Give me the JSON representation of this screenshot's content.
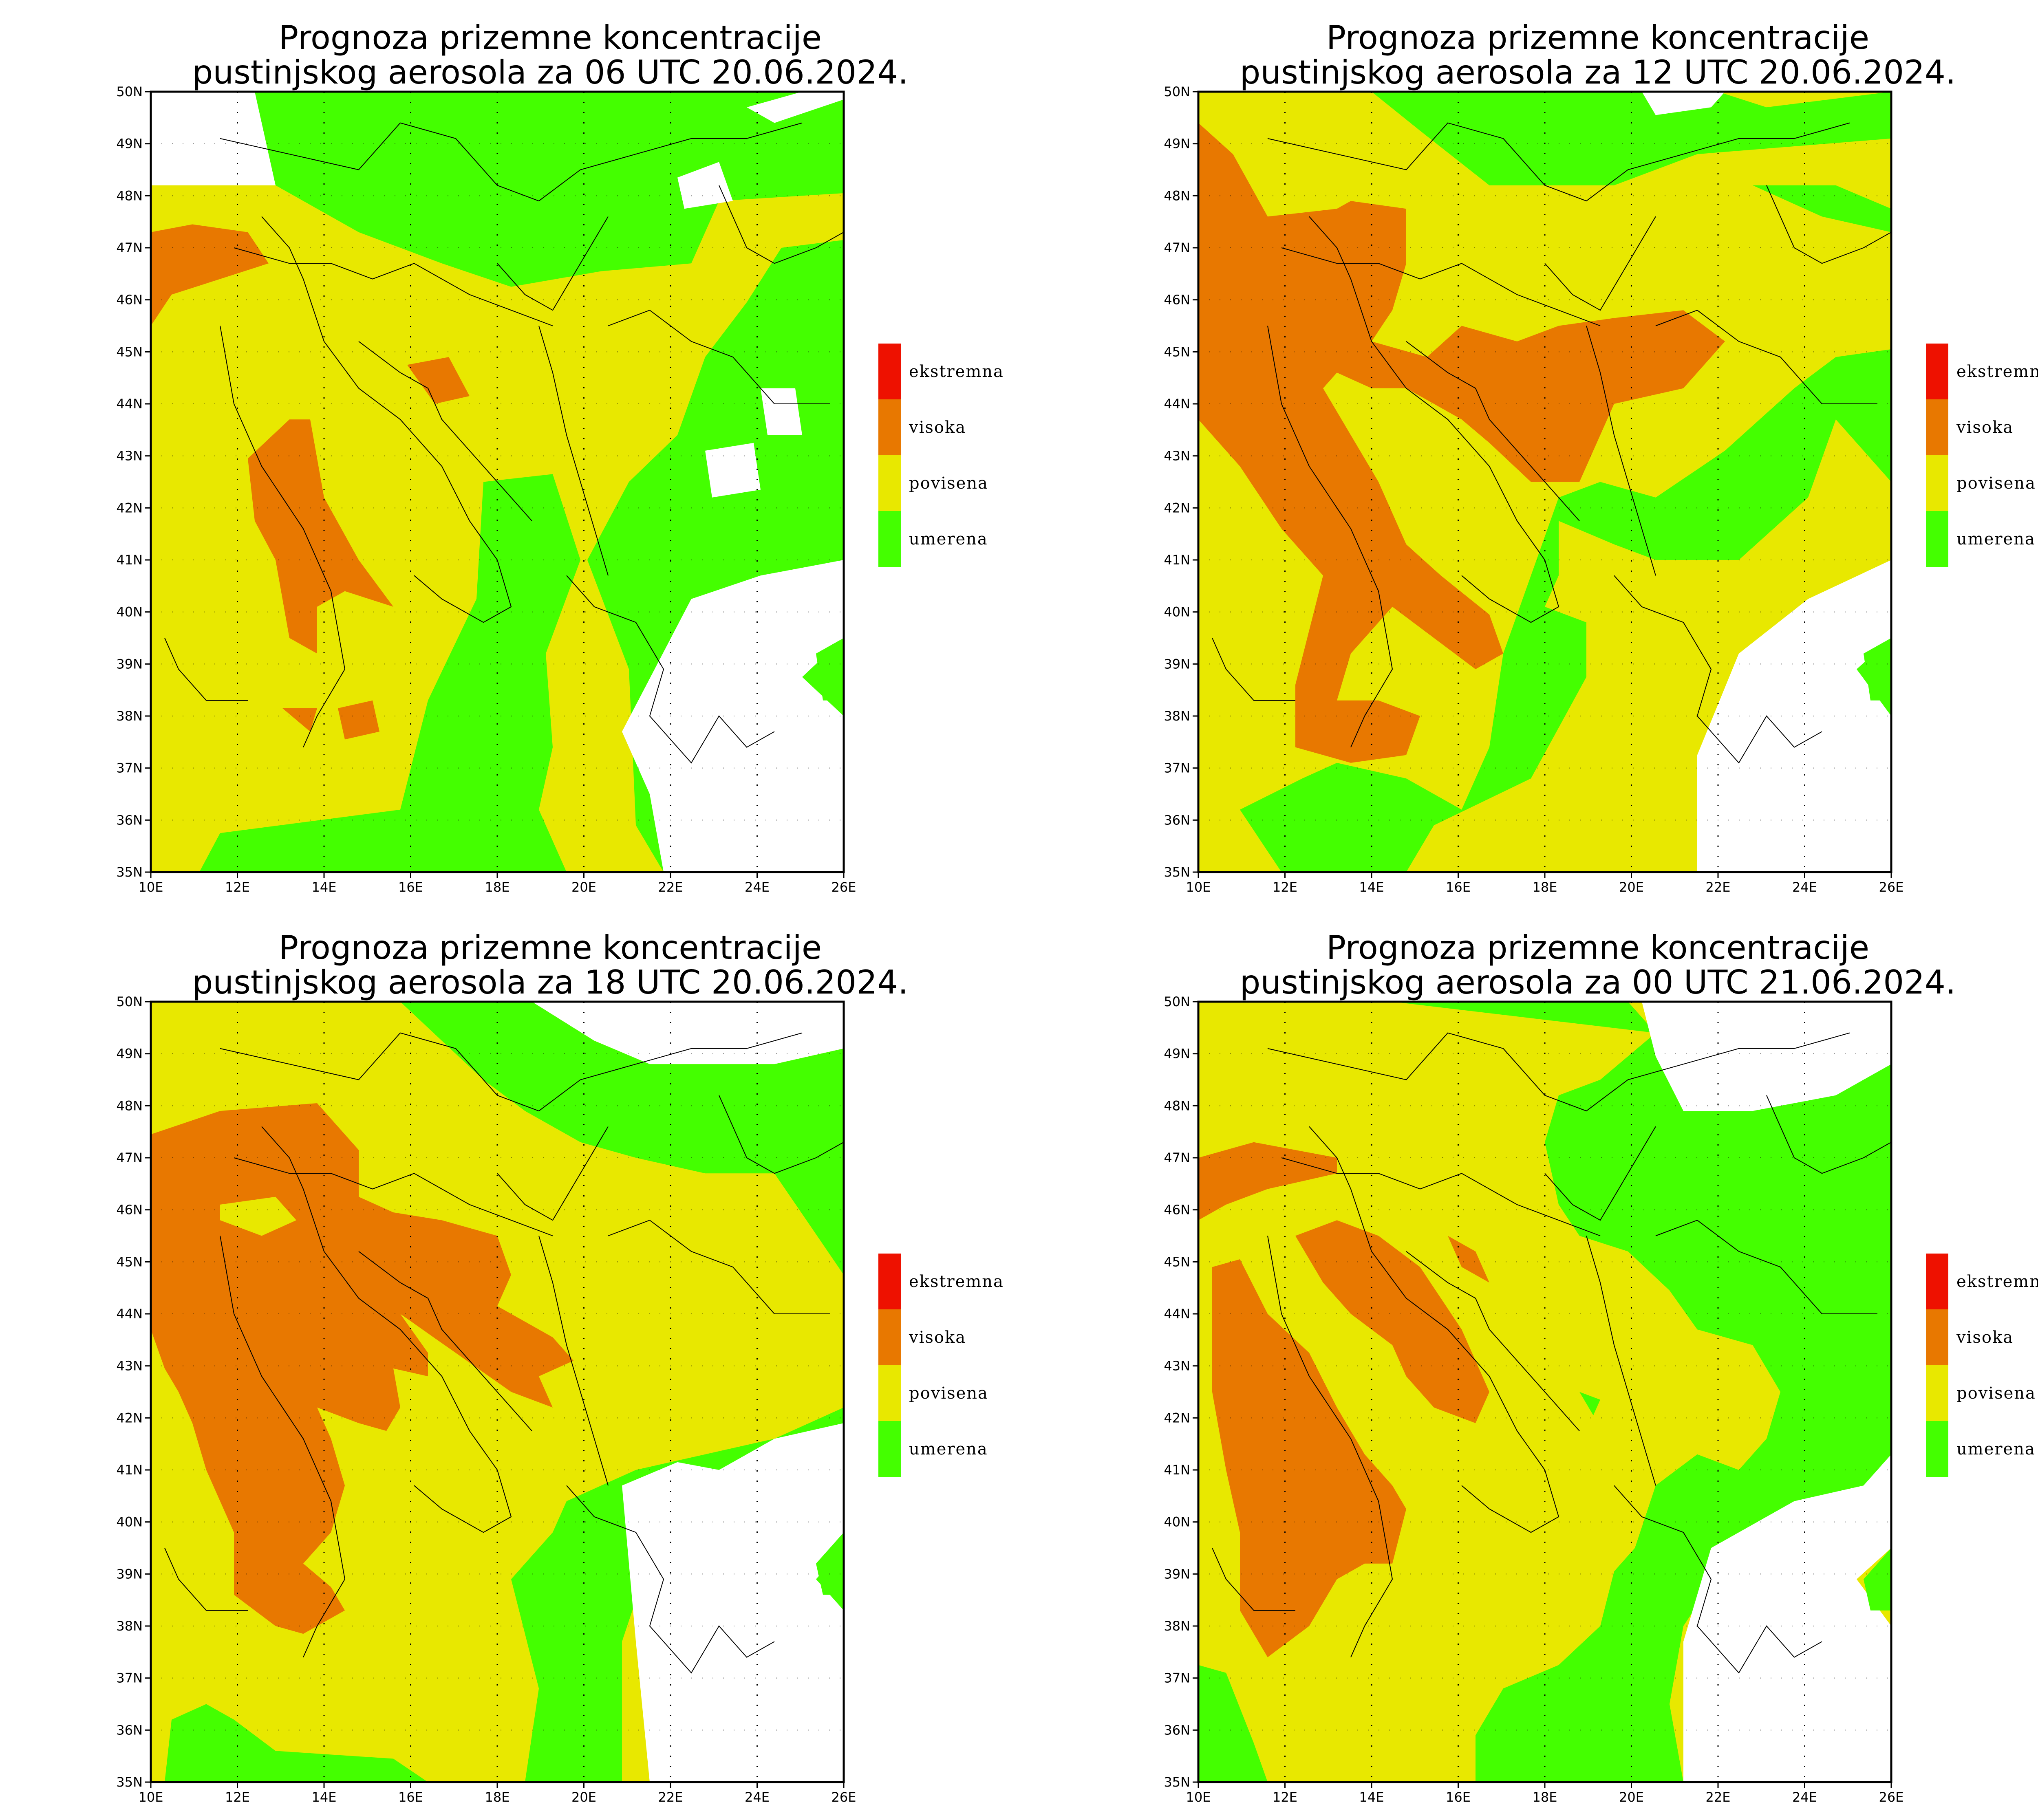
{
  "colors": {
    "umerena": "#44ff00",
    "povisena": "#e8e800",
    "visoka": "#e87800",
    "ekstremna": "#ee1100",
    "no_data": "#ffffff",
    "border": "#000000"
  },
  "legend": [
    {
      "key": "ekstremna",
      "label": "ekstremna"
    },
    {
      "key": "visoka",
      "label": "visoka"
    },
    {
      "key": "povisena",
      "label": "povisena"
    },
    {
      "key": "umerena",
      "label": "umerena"
    }
  ],
  "axes": {
    "lon_ticks": [
      "10E",
      "12E",
      "14E",
      "16E",
      "18E",
      "20E",
      "22E",
      "24E",
      "26E"
    ],
    "lat_ticks": [
      "35N",
      "36N",
      "37N",
      "38N",
      "39N",
      "40N",
      "41N",
      "42N",
      "43N",
      "44N",
      "45N",
      "46N",
      "47N",
      "48N",
      "49N",
      "50N"
    ],
    "lon_range": [
      10,
      26
    ],
    "lat_range": [
      35,
      50
    ]
  },
  "panels": [
    {
      "id": "p06",
      "title_line1": "Prognoza prizemne koncentracije",
      "title_line2": "pustinjskog aerosola za 06 UTC 20.06.2024."
    },
    {
      "id": "p12",
      "title_line1": "Prognoza prizemne koncentracije",
      "title_line2": "pustinjskog aerosola za 12 UTC 20.06.2024."
    },
    {
      "id": "p18",
      "title_line1": "Prognoza prizemne koncentracije",
      "title_line2": "pustinjskog aerosola za 18 UTC 20.06.2024."
    },
    {
      "id": "p00",
      "title_line1": "Prognoza prizemne koncentracije",
      "title_line2": "pustinjskog aerosola za 00 UTC 21.06.2024."
    }
  ]
}
